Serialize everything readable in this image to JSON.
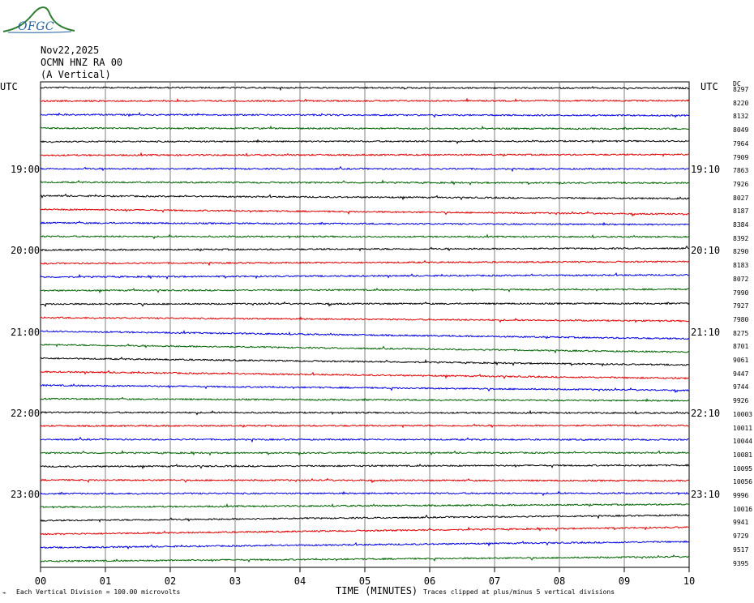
{
  "header": {
    "logo_text": "OFGC",
    "date": "Nov22,2025",
    "station": "OCMN HNZ RA 00",
    "component": "(A Vertical)"
  },
  "chart_data": {
    "type": "line",
    "title": "OCMN HNZ RA 00 (A Vertical)",
    "left_axis_label": "UTC",
    "right_axis_label": "UTC",
    "dc_label": "DC",
    "left_time_labels": [
      "19:00",
      "20:00",
      "21:00",
      "22:00",
      "23:00"
    ],
    "right_time_labels": [
      "19:10",
      "20:10",
      "21:10",
      "22:10",
      "23:10"
    ],
    "xlabel": "TIME (MINUTES)",
    "xticks": [
      "00",
      "01",
      "02",
      "03",
      "04",
      "05",
      "06",
      "07",
      "08",
      "09",
      "10"
    ],
    "xlim": [
      0,
      10
    ],
    "grid": true,
    "trace_colors": [
      "#000000",
      "#e00000",
      "#0000e0",
      "#006400"
    ],
    "dc_offsets": [
      "8297",
      "8220",
      "8132",
      "8049",
      "7964",
      "7909",
      "7863",
      "7926",
      "8027",
      "8187",
      "8384",
      "8392",
      "8290",
      "8183",
      "8072",
      "7990",
      "7927",
      "7980",
      "8275",
      "8701",
      "9061",
      "9447",
      "9744",
      "9926",
      "10003",
      "10011",
      "10044",
      "10081",
      "10095",
      "10056",
      "9996",
      "10016",
      "9941",
      "9729",
      "9517",
      "9395"
    ],
    "trace_drift": [
      -0.3,
      0.2,
      -0.4,
      -0.3,
      0.3,
      0.3,
      -0.1,
      -0.3,
      -1.3,
      -2.3,
      -0.8,
      -0.2,
      0.8,
      0.9,
      1.0,
      0.6,
      0.3,
      -1.6,
      -3.6,
      -3.5,
      -3.2,
      -3.1,
      -2.4,
      -0.9,
      -0.3,
      0.2,
      -0.1,
      0.1,
      0.6,
      -0.3,
      0.2,
      1.3,
      2.6,
      3.3,
      2.9,
      2.1
    ],
    "footer_left": "Each Vertical Division =  100.00 microvolts",
    "footer_right": "Traces clipped at plus/minus 5 vertical divisions"
  }
}
